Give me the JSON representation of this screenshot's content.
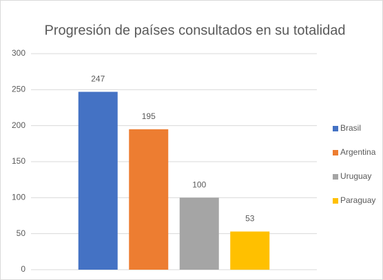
{
  "chart_data": {
    "type": "bar",
    "title": "Progresión de países consultados en su totalidad",
    "categories": [
      null
    ],
    "series": [
      {
        "name": "Brasil",
        "color": "#4472c4",
        "values": [
          247
        ]
      },
      {
        "name": "Argentina",
        "color": "#ed7d31",
        "values": [
          195
        ]
      },
      {
        "name": "Uruguay",
        "color": "#a5a5a5",
        "values": [
          100
        ]
      },
      {
        "name": "Paraguay",
        "color": "#ffc000",
        "values": [
          53
        ]
      }
    ],
    "ylim": [
      0,
      300
    ],
    "yticks": [
      0,
      50,
      100,
      150,
      200,
      250,
      300
    ],
    "grid": true,
    "legend": "right",
    "data_labels": true
  }
}
